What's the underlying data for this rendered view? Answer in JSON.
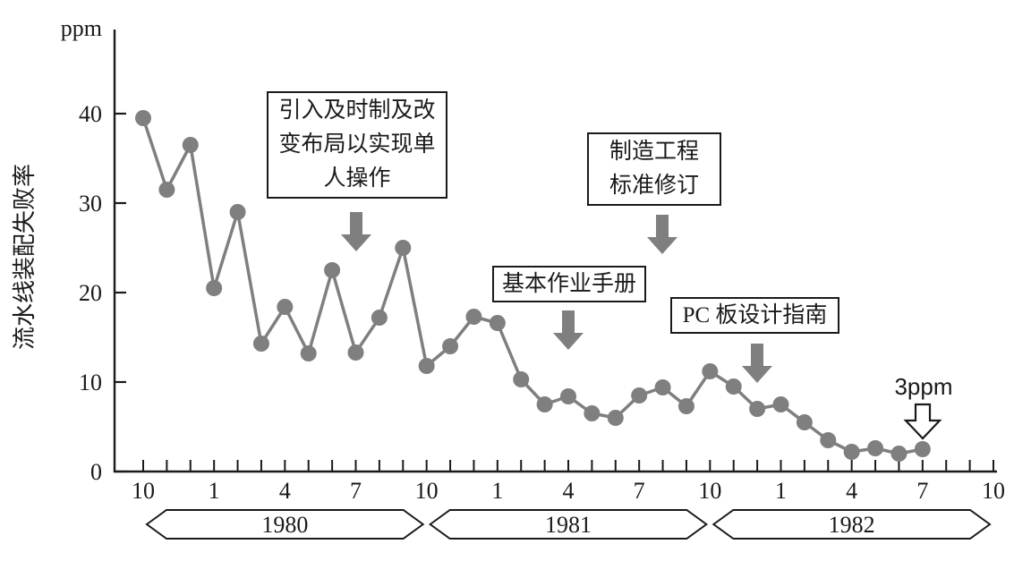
{
  "chart_data": {
    "type": "line",
    "title": "",
    "ylabel": "流水线装配失败率",
    "y_unit_label": "ppm",
    "ylim": [
      0,
      47
    ],
    "y_ticks": [
      0,
      10,
      20,
      30,
      40
    ],
    "x_axis": {
      "start": "1979-10",
      "tick_interval": "1 month",
      "label_every_n_ticks": 3,
      "tick_labels": [
        "10",
        "1",
        "4",
        "7",
        "10",
        "1",
        "4",
        "7",
        "10",
        "1",
        "4",
        "7",
        "10"
      ],
      "total_months": 36
    },
    "series": [
      {
        "name": "流水线装配失败率 (ppm)",
        "start_month": "1979-10",
        "values": [
          39.5,
          31.5,
          36.5,
          20.5,
          29.0,
          14.3,
          18.4,
          13.2,
          22.5,
          13.3,
          17.2,
          25.0,
          11.8,
          14.0,
          17.3,
          16.6,
          10.3,
          7.5,
          8.4,
          6.5,
          6.0,
          8.5,
          9.4,
          7.3,
          11.2,
          9.5,
          7.0,
          7.5,
          5.5,
          3.5,
          2.2,
          2.6,
          2.0,
          2.5
        ]
      }
    ],
    "year_bands": [
      {
        "label": "1980",
        "start_month": 0,
        "end_month": 12
      },
      {
        "label": "1981",
        "start_month": 12,
        "end_month": 24
      },
      {
        "label": "1982",
        "start_month": 24,
        "end_month": 36
      }
    ],
    "annotations": [
      {
        "id": "jit",
        "lines": [
          "引入及时制及改",
          "变布局以实现单",
          "人操作"
        ],
        "arrow": "solid",
        "points_to_month": "1980-07"
      },
      {
        "id": "mfg-std",
        "lines": [
          "制造工程",
          "标准修订"
        ],
        "arrow": "solid",
        "points_to_month": "1981-08"
      },
      {
        "id": "basic-manual",
        "lines": [
          "基本作业手册"
        ],
        "arrow": "solid",
        "points_to_month": "1981-04"
      },
      {
        "id": "pcb-guide",
        "lines": [
          "PC 板设计指南"
        ],
        "arrow": "solid",
        "points_to_month": "1981-12"
      },
      {
        "id": "final-level",
        "lines": [
          "3ppm"
        ],
        "arrow": "hollow",
        "points_to_month": "1982-07"
      }
    ],
    "legend": null,
    "grid": false,
    "colors": {
      "series": "#7f7f7f",
      "axis": "#1a1a1a",
      "annotation_border": "#1a1a1a",
      "background": "#ffffff"
    }
  }
}
